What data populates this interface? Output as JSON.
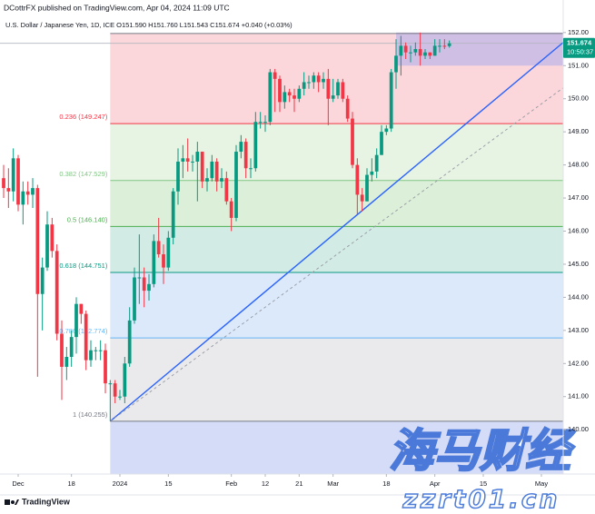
{
  "header": {
    "author_line": "DCottrFX published on TradingView.com, Apr 04, 2024 11:09 UTC",
    "symbol_line": "U.S. Dollar / Japanese Yen, 1D, ICE  O151.590 H151.760 L151.543 C151.674 +0.040 (+0.03%)"
  },
  "footer": {
    "brand": "TradingView"
  },
  "watermark": {
    "title": "海马财经",
    "site": "zzrt01.cn"
  },
  "chart_data": {
    "type": "candlestick",
    "x": [
      -3,
      -2,
      -1,
      0,
      1,
      2,
      3,
      4,
      5,
      6,
      7,
      8,
      9,
      10,
      11,
      12,
      13,
      14,
      15,
      16,
      17,
      18,
      19,
      20,
      21,
      22,
      23,
      24,
      25,
      26,
      27,
      28,
      29,
      30,
      31,
      32,
      33,
      34,
      35,
      36,
      37,
      38,
      39,
      40,
      41,
      42,
      43,
      44,
      45,
      46,
      47,
      48,
      49,
      50,
      51,
      52,
      53,
      54,
      55,
      56,
      57,
      58,
      59,
      60,
      61,
      62,
      63,
      64,
      65,
      66,
      67,
      68,
      69,
      70,
      71,
      72,
      73,
      74,
      75,
      76,
      77,
      78,
      79,
      80,
      81,
      82,
      83,
      84,
      85,
      86,
      87,
      88,
      89
    ],
    "open": [
      147.6,
      147.3,
      147.2,
      148.2,
      146.8,
      147.2,
      147.1,
      147.3,
      144.1,
      144.9,
      146.2,
      145.4,
      142.9,
      141.9,
      142.2,
      142.8,
      143.8,
      143.5,
      142.1,
      142.4,
      142.4,
      142.4,
      141.4,
      141.4,
      141.0,
      141.0,
      142.0,
      143.3,
      144.6,
      144.6,
      144.2,
      144.4,
      145.7,
      145.3,
      144.9,
      145.8,
      147.2,
      148.1,
      148.2,
      148.1,
      148.1,
      148.4,
      147.5,
      147.6,
      148.1,
      147.5,
      147.6,
      146.9,
      146.4,
      148.4,
      148.7,
      147.9,
      147.9,
      149.3,
      149.3,
      149.3,
      150.8,
      150.6,
      149.9,
      150.2,
      150.1,
      150.0,
      150.3,
      150.5,
      150.5,
      150.7,
      150.5,
      150.6,
      150.0,
      150.1,
      150.5,
      150.0,
      149.4,
      148.0,
      147.1,
      146.9,
      147.7,
      147.8,
      148.3,
      149.0,
      149.1,
      150.8,
      151.3,
      151.6,
      151.4,
      151.4,
      151.5,
      151.3,
      151.4,
      151.3,
      151.6,
      151.6,
      151.59
    ],
    "high": [
      148.0,
      147.9,
      148.5,
      148.3,
      147.5,
      147.5,
      147.6,
      147.4,
      145.2,
      146.6,
      146.4,
      145.6,
      143.3,
      142.5,
      143.0,
      144.0,
      143.8,
      143.6,
      142.7,
      142.5,
      142.7,
      142.6,
      141.5,
      141.5,
      141.2,
      142.2,
      143.7,
      144.9,
      145.9,
      144.9,
      144.7,
      145.9,
      146.4,
      145.6,
      146.0,
      147.3,
      148.5,
      148.6,
      148.8,
      148.3,
      148.7,
      148.4,
      147.9,
      148.3,
      148.2,
      147.9,
      147.8,
      147.0,
      148.6,
      148.9,
      148.8,
      148.2,
      149.6,
      149.6,
      149.5,
      150.9,
      150.9,
      150.7,
      150.4,
      150.3,
      150.3,
      150.4,
      150.8,
      150.7,
      150.8,
      150.8,
      150.8,
      150.9,
      150.6,
      150.6,
      150.6,
      150.1,
      149.6,
      148.2,
      147.3,
      147.9,
      148.2,
      148.5,
      149.2,
      149.2,
      150.9,
      151.8,
      151.9,
      151.7,
      151.6,
      151.7,
      152.0,
      151.5,
      151.4,
      151.8,
      151.8,
      151.8,
      151.76
    ],
    "low": [
      147.0,
      146.7,
      146.9,
      146.6,
      146.2,
      146.8,
      146.7,
      141.6,
      143.0,
      144.8,
      145.2,
      142.7,
      140.9,
      141.5,
      141.9,
      142.3,
      143.2,
      141.8,
      141.9,
      142.1,
      142.1,
      141.1,
      140.255,
      140.8,
      140.9,
      140.8,
      141.9,
      143.2,
      143.8,
      143.7,
      143.9,
      144.3,
      145.2,
      144.4,
      144.8,
      145.6,
      146.8,
      147.6,
      147.8,
      147.8,
      146.9,
      147.3,
      147.2,
      147.5,
      147.2,
      147.3,
      146.8,
      146.0,
      146.3,
      148.2,
      147.6,
      147.6,
      147.8,
      149.1,
      149.0,
      149.2,
      149.6,
      149.6,
      149.7,
      149.9,
      149.6,
      149.9,
      150.1,
      150.3,
      150.3,
      150.2,
      150.3,
      149.2,
      149.9,
      150.0,
      149.9,
      149.3,
      147.9,
      146.5,
      146.6,
      146.9,
      147.5,
      147.6,
      148.3,
      148.9,
      149.0,
      150.3,
      150.7,
      151.2,
      151.1,
      151.3,
      151.0,
      151.2,
      151.2,
      151.3,
      151.4,
      151.5,
      151.543
    ],
    "close": [
      147.3,
      147.2,
      148.2,
      146.8,
      147.2,
      147.1,
      147.3,
      144.1,
      144.9,
      146.2,
      145.4,
      142.9,
      141.9,
      142.2,
      142.8,
      143.8,
      143.5,
      142.1,
      142.4,
      142.4,
      142.4,
      141.4,
      141.4,
      141.0,
      141.0,
      142.0,
      143.3,
      144.6,
      144.6,
      144.2,
      144.4,
      145.7,
      145.3,
      144.9,
      145.8,
      147.2,
      148.1,
      148.2,
      148.1,
      148.1,
      148.4,
      147.5,
      147.6,
      148.1,
      147.5,
      147.6,
      146.9,
      146.4,
      148.4,
      148.7,
      147.9,
      147.9,
      149.3,
      149.3,
      149.3,
      150.8,
      150.6,
      149.9,
      150.2,
      150.1,
      150.0,
      150.3,
      150.5,
      150.5,
      150.7,
      150.5,
      150.6,
      150.0,
      150.1,
      150.5,
      150.0,
      149.4,
      148.0,
      147.1,
      146.9,
      147.7,
      147.8,
      148.3,
      149.0,
      149.1,
      150.8,
      151.3,
      151.6,
      151.4,
      151.4,
      151.5,
      151.3,
      151.4,
      151.3,
      151.6,
      151.6,
      151.59,
      151.674
    ],
    "up_color": "#089981",
    "down_color": "#f23645",
    "countdown": "10:50:37",
    "xlim": [
      -3.75,
      112.5
    ],
    "xticks": [
      {
        "value": 0,
        "label": "Dec"
      },
      {
        "value": 11,
        "label": "18"
      },
      {
        "value": 21,
        "label": "2024"
      },
      {
        "value": 31,
        "label": "15"
      },
      {
        "value": 44,
        "label": "Feb"
      },
      {
        "value": 51,
        "label": "12"
      },
      {
        "value": 58,
        "label": "21"
      },
      {
        "value": 65,
        "label": "Mar"
      },
      {
        "value": 76,
        "label": "18"
      },
      {
        "value": 86,
        "label": "Apr"
      },
      {
        "value": 96,
        "label": "15"
      },
      {
        "value": 108,
        "label": "May"
      }
    ],
    "ylim": [
      138.66,
      152.16
    ],
    "yticks": [
      {
        "value": 140,
        "label": "140.00"
      },
      {
        "value": 141,
        "label": "141.00"
      },
      {
        "value": 142,
        "label": "142.00"
      },
      {
        "value": 143,
        "label": "143.00"
      },
      {
        "value": 144,
        "label": "144.00"
      },
      {
        "value": 145,
        "label": "145.00"
      },
      {
        "value": 146,
        "label": "146.00"
      },
      {
        "value": 147,
        "label": "147.00"
      },
      {
        "value": 148,
        "label": "148.00"
      },
      {
        "value": 149,
        "label": "149.00"
      },
      {
        "value": 150,
        "label": "150.00"
      },
      {
        "value": 151,
        "label": "151.00"
      },
      {
        "value": 152,
        "label": "152.00"
      }
    ],
    "grid": false,
    "fib": {
      "start_x": 19,
      "below_fill": "#d5dcf8",
      "levels": [
        {
          "value": 151.97,
          "label": null,
          "color": "#787b86",
          "fill": null
        },
        {
          "value": 149.247,
          "label": "0.236 (149.247)",
          "color": "#f23645",
          "fill": "#fbd6da"
        },
        {
          "value": 147.529,
          "label": "0.382 (147.529)",
          "color": "#81c784",
          "fill": "#e7f3e3"
        },
        {
          "value": 146.14,
          "label": "0.5 (146.140)",
          "color": "#4caf50",
          "fill": "#dcefd9"
        },
        {
          "value": 144.751,
          "label": "0.618 (144.751)",
          "color": "#089981",
          "fill": "#d2ebe5"
        },
        {
          "value": 142.774,
          "label": "0.786 (142.774)",
          "color": "#64b5f6",
          "fill": "#dbe9fb"
        },
        {
          "value": 140.255,
          "label": "1 (140.255)",
          "color": "#787b86",
          "fill": "#eaeaec"
        }
      ]
    },
    "zone": {
      "x": [
        78,
        112.5
      ],
      "y": [
        151.0,
        152.0
      ],
      "color": "#cbbde4"
    },
    "trendlines": [
      {
        "x": [
          19,
          112.5
        ],
        "y": [
          140.255,
          151.7
        ],
        "color": "#2962ff",
        "dashed": false
      },
      {
        "x": [
          19,
          112.5
        ],
        "y": [
          140.255,
          150.33
        ],
        "color": "#9598a1",
        "dashed": true
      }
    ]
  }
}
